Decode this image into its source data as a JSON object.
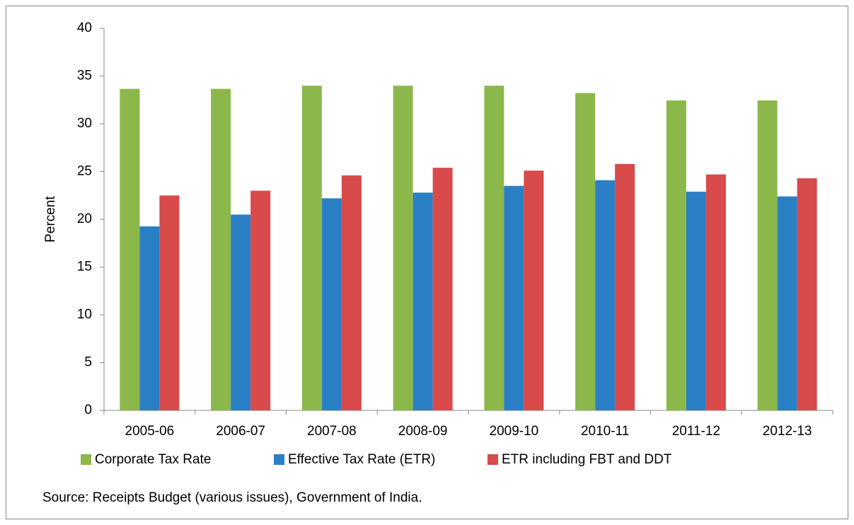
{
  "chart_data": {
    "type": "bar",
    "y_label": "Percent",
    "source": "Source: Receipts Budget (various issues), Government of India.",
    "categories": [
      "2005-06",
      "2006-07",
      "2007-08",
      "2008-09",
      "2009-10",
      "2010-11",
      "2011-12",
      "2012-13"
    ],
    "series": [
      {
        "name": "Corporate Tax Rate",
        "color": "#8cb84b",
        "values": [
          33.66,
          33.66,
          33.99,
          33.99,
          33.99,
          33.22,
          32.45,
          32.45
        ]
      },
      {
        "name": "Effective Tax Rate (ETR)",
        "color": "#2b80c5",
        "values": [
          19.26,
          20.5,
          22.2,
          22.8,
          23.5,
          24.1,
          22.9,
          22.4
        ]
      },
      {
        "name": "ETR including FBT and DDT",
        "color": "#d94a4b",
        "values": [
          22.5,
          23.0,
          24.6,
          25.4,
          25.1,
          25.8,
          24.7,
          24.3
        ]
      }
    ],
    "ylim": [
      0,
      40
    ],
    "yticks": [
      0,
      5,
      10,
      15,
      20,
      25,
      30,
      35,
      40
    ],
    "grid": false
  }
}
